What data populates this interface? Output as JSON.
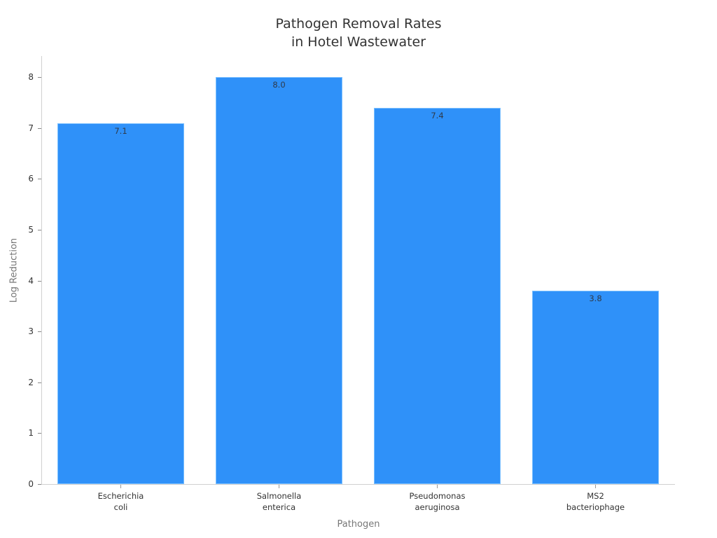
{
  "chart_data": {
    "type": "bar",
    "title": "Pathogen Removal Rates in Hotel Wastewater",
    "title_lines": [
      "Pathogen Removal Rates",
      "in Hotel Wastewater"
    ],
    "xlabel": "Pathogen",
    "ylabel": "Log Reduction",
    "categories": [
      "Escherichia coli",
      "Salmonella enterica",
      "Pseudomonas aeruginosa",
      "MS2 bacteriophage"
    ],
    "category_lines": [
      [
        "Escherichia",
        "coli"
      ],
      [
        "Salmonella",
        "enterica"
      ],
      [
        "Pseudomonas",
        "aeruginosa"
      ],
      [
        "MS2",
        "bacteriophage"
      ]
    ],
    "values": [
      7.1,
      8.0,
      7.4,
      3.8
    ],
    "value_labels": [
      "7.1",
      "8.0",
      "7.4",
      "3.8"
    ],
    "yticks": [
      "0",
      "1",
      "2",
      "3",
      "4",
      "5",
      "6",
      "7",
      "8"
    ],
    "ylim": [
      0,
      8.4
    ],
    "grid": false,
    "legend": null,
    "bar_color": "#2f91f9"
  }
}
